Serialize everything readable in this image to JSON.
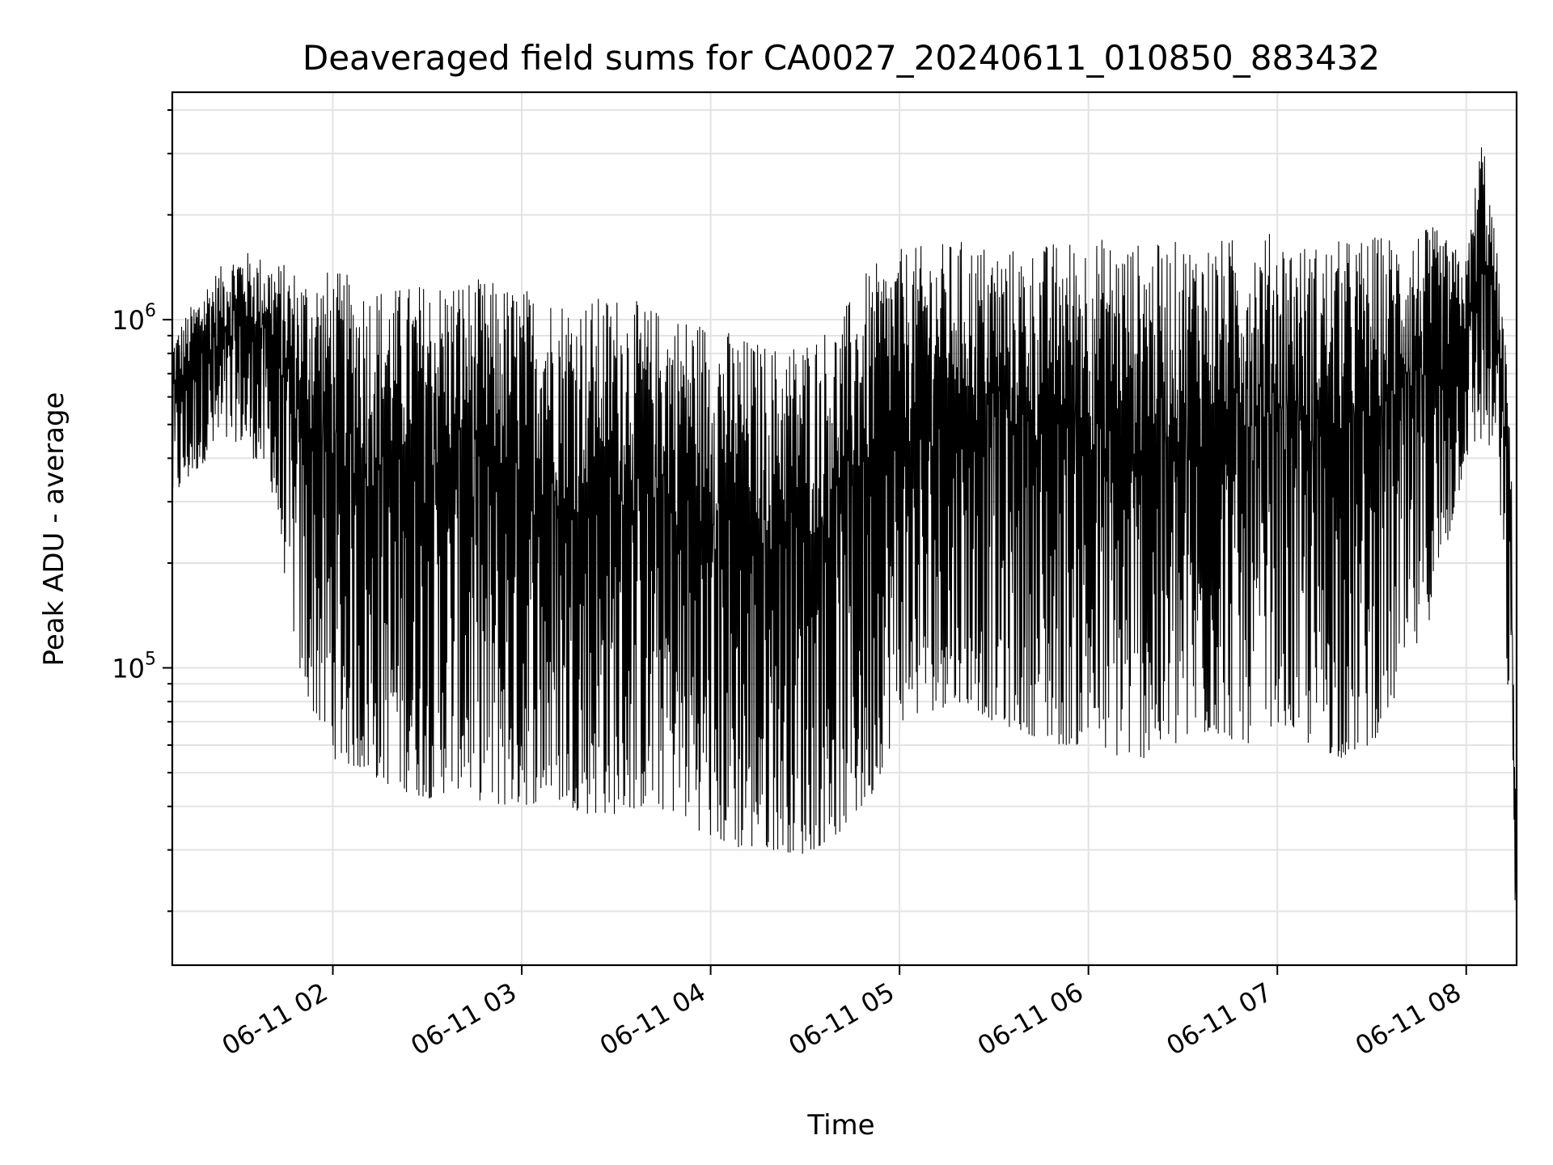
{
  "chart_data": {
    "type": "line",
    "title": "Deaveraged field sums for CA0027_20240611_010850_883432",
    "xlabel": "Time",
    "ylabel": "Peak ADU - average",
    "yscale": "log",
    "xlim": [
      "2024-06-11 01:09",
      "2024-06-11 08:16"
    ],
    "ylim": [
      14000,
      4500000
    ],
    "grid": true,
    "x_tick_labels": [
      "06-11 02",
      "06-11 03",
      "06-11 04",
      "06-11 05",
      "06-11 06",
      "06-11 07",
      "06-11 08"
    ],
    "y_tick_labels": [
      {
        "base": "10",
        "exp": "5"
      },
      {
        "base": "10",
        "exp": "6"
      }
    ],
    "series": [
      {
        "color": "#000000",
        "x": [
          "2024-06-11 01:09",
          "2024-06-11 01:20",
          "2024-06-11 01:30",
          "2024-06-11 01:40",
          "2024-06-11 01:50",
          "2024-06-11 02:00",
          "2024-06-11 02:10",
          "2024-06-11 02:20",
          "2024-06-11 02:30",
          "2024-06-11 02:40",
          "2024-06-11 02:50",
          "2024-06-11 03:00",
          "2024-06-11 03:10",
          "2024-06-11 03:20",
          "2024-06-11 03:30",
          "2024-06-11 03:40",
          "2024-06-11 03:50",
          "2024-06-11 04:00",
          "2024-06-11 04:10",
          "2024-06-11 04:20",
          "2024-06-11 04:30",
          "2024-06-11 04:40",
          "2024-06-11 04:50",
          "2024-06-11 05:00",
          "2024-06-11 05:10",
          "2024-06-11 05:20",
          "2024-06-11 05:30",
          "2024-06-11 05:40",
          "2024-06-11 05:50",
          "2024-06-11 06:00",
          "2024-06-11 06:10",
          "2024-06-11 06:20",
          "2024-06-11 06:30",
          "2024-06-11 06:40",
          "2024-06-11 06:50",
          "2024-06-11 07:00",
          "2024-06-11 07:10",
          "2024-06-11 07:20",
          "2024-06-11 07:30",
          "2024-06-11 07:40",
          "2024-06-11 07:50",
          "2024-06-11 08:00",
          "2024-06-11 08:05",
          "2024-06-11 08:10",
          "2024-06-11 08:14",
          "2024-06-11 08:16"
        ],
        "upper": [
          900000,
          1300000,
          1600000,
          1500000,
          1400000,
          1400000,
          1300000,
          1250000,
          1300000,
          1350000,
          1300000,
          1250000,
          1200000,
          1150000,
          1200000,
          1100000,
          1050000,
          1000000,
          900000,
          850000,
          900000,
          1000000,
          1400000,
          1600000,
          1650000,
          1700000,
          1650000,
          1600000,
          1700000,
          1750000,
          1700000,
          1650000,
          1700000,
          1700000,
          1750000,
          1800000,
          1650000,
          1700000,
          1750000,
          1800000,
          1850000,
          1500000,
          3600000,
          1500000,
          600000,
          30000
        ],
        "lower": [
          300000,
          400000,
          450000,
          350000,
          90000,
          55000,
          50000,
          45000,
          42000,
          45000,
          40000,
          40000,
          42000,
          38000,
          38000,
          40000,
          38000,
          32000,
          30000,
          30000,
          29000,
          33000,
          40000,
          70000,
          75000,
          80000,
          70000,
          65000,
          60000,
          60000,
          55000,
          55000,
          60000,
          65000,
          60000,
          70000,
          60000,
          55000,
          60000,
          90000,
          150000,
          400000,
          450000,
          400000,
          60000,
          15000
        ]
      }
    ]
  }
}
